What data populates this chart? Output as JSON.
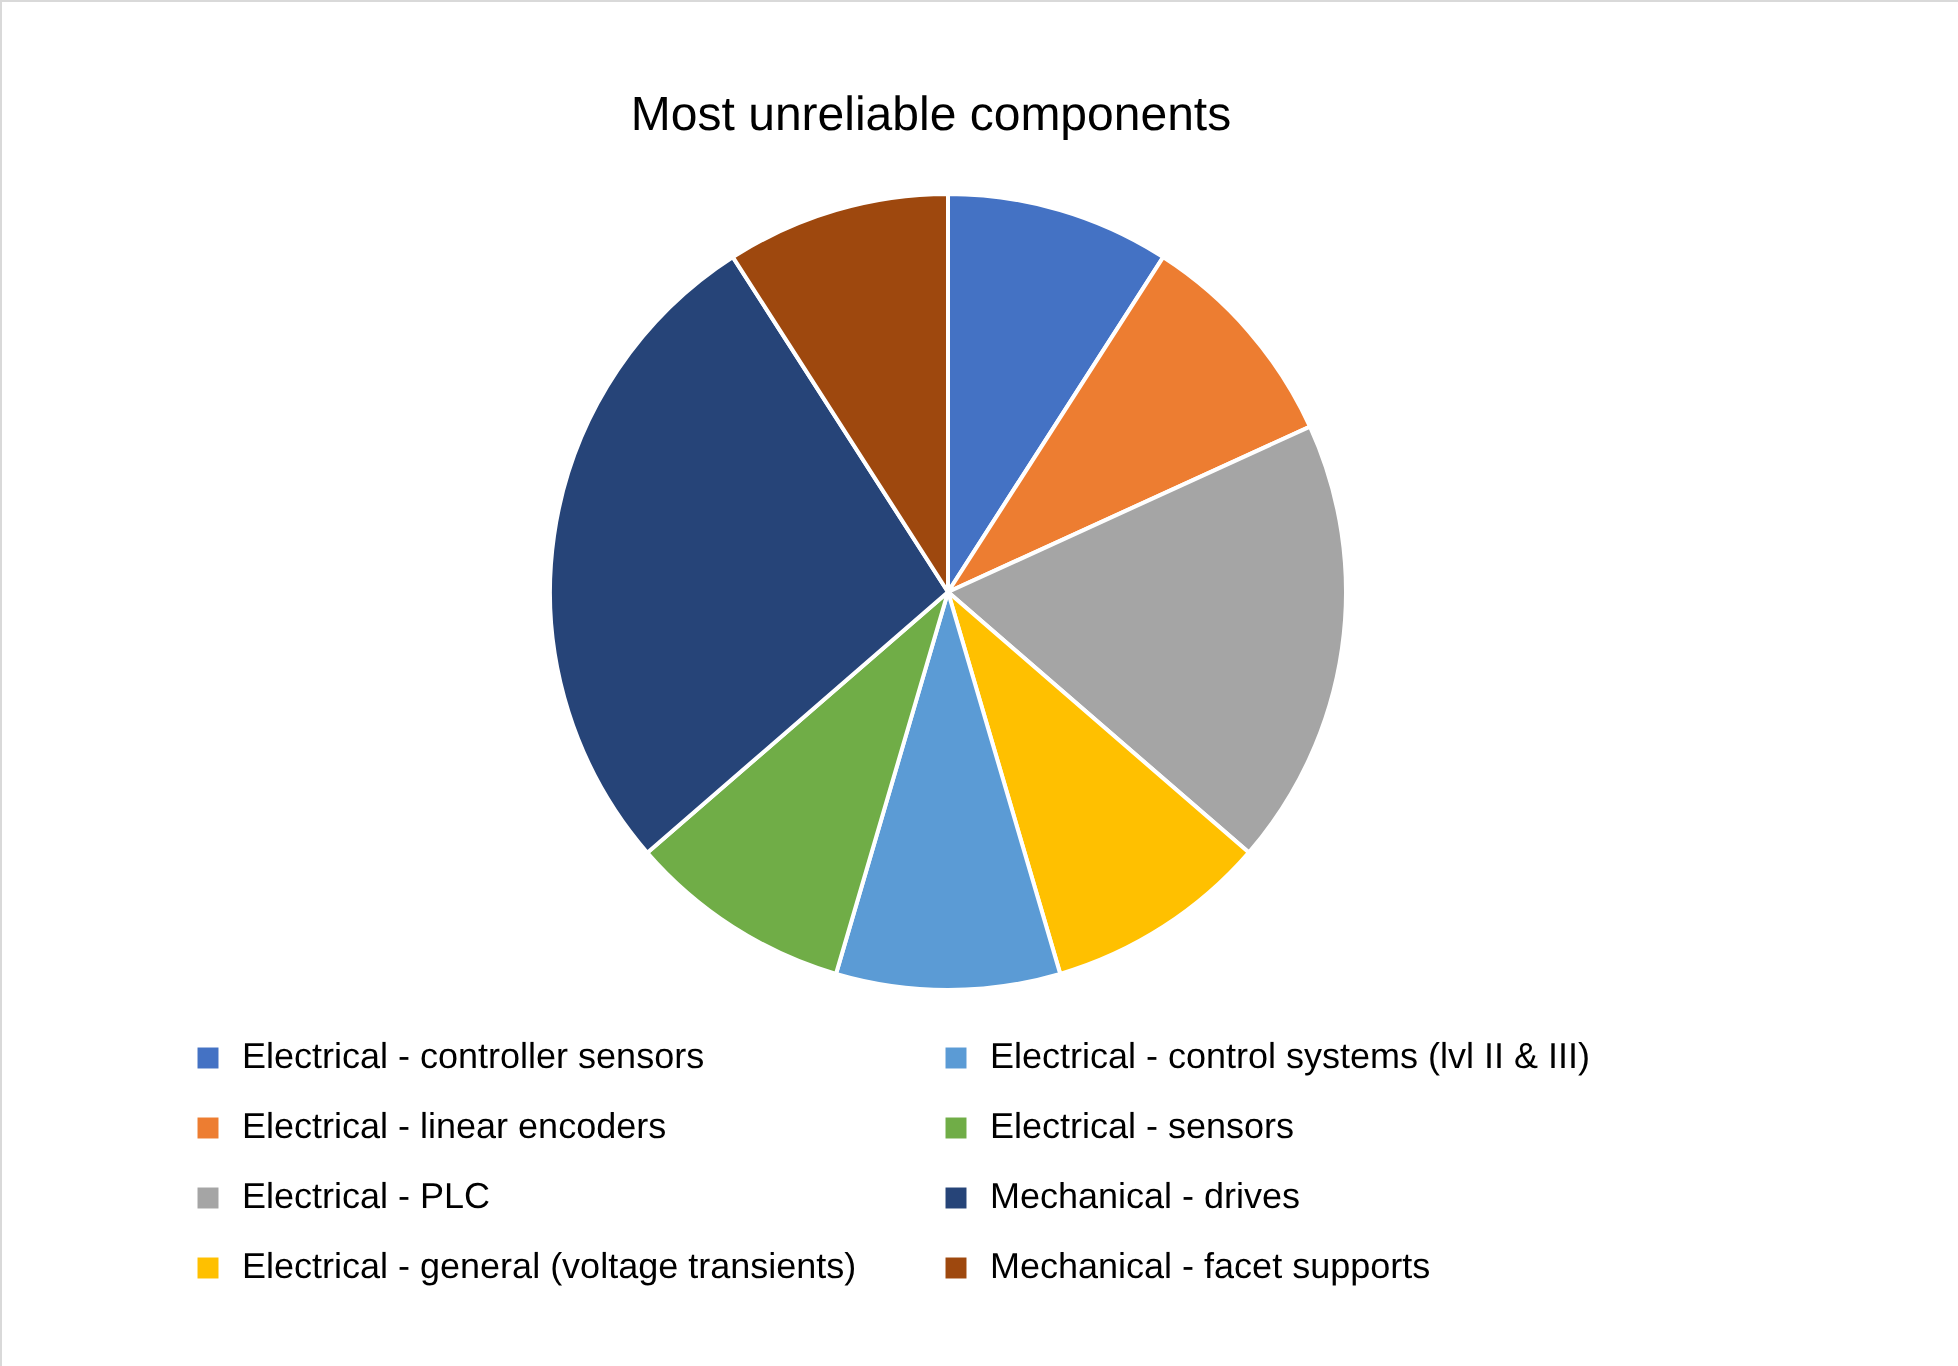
{
  "chart_data": {
    "type": "pie",
    "title": "Most unreliable components",
    "categories": [
      "Electrical - controller sensors",
      "Electrical - linear encoders",
      "Electrical - PLC",
      "Electrical - general (voltage transients)",
      "Electrical - control systems (lvl II & III)",
      "Electrical - sensors",
      "Mechanical - drives",
      "Mechanical - facet supports"
    ],
    "values": [
      9.09,
      9.09,
      18.18,
      9.09,
      9.09,
      9.09,
      27.28,
      9.09
    ],
    "colors": [
      "#4472c4",
      "#ed7d31",
      "#a5a5a5",
      "#ffc000",
      "#5b9bd5",
      "#70ad47",
      "#264478",
      "#9e480e"
    ],
    "legend": "bottom"
  }
}
